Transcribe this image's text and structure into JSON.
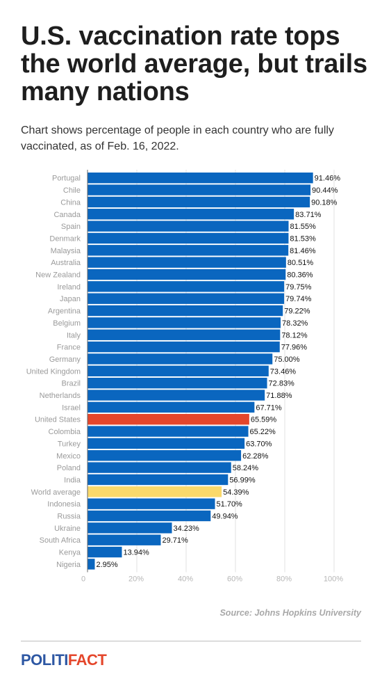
{
  "header": {
    "title": "U.S. vaccination rate tops the world average, but trails many nations",
    "subtitle": "Chart shows percentage of people in each country who are fully vaccinated, as of Feb. 16, 2022."
  },
  "footer": {
    "source": "Source: Johns Hopkins University",
    "logo_part1": "POLITI",
    "logo_part2": "FACT"
  },
  "colors": {
    "bar": "#0a66bf",
    "highlight_us": "#e4462b",
    "highlight_world": "#fad96b",
    "grid": "#e2e2e2",
    "label": "#9a9a9a"
  },
  "chart_data": {
    "type": "bar",
    "orientation": "horizontal",
    "xlim": [
      0,
      100
    ],
    "x_ticks": [
      "0",
      "20%",
      "40%",
      "60%",
      "80%",
      "100%"
    ],
    "x_tick_values": [
      0,
      20,
      40,
      60,
      80,
      100
    ],
    "grid": true,
    "categories": [
      "Portugal",
      "Chile",
      "China",
      "Canada",
      "Spain",
      "Denmark",
      "Malaysia",
      "Australia",
      "New Zealand",
      "Ireland",
      "Japan",
      "Argentina",
      "Belgium",
      "Italy",
      "France",
      "Germany",
      "United Kingdom",
      "Brazil",
      "Netherlands",
      "Israel",
      "United States",
      "Colombia",
      "Turkey",
      "Mexico",
      "Poland",
      "India",
      "World average",
      "Indonesia",
      "Russia",
      "Ukraine",
      "South Africa",
      "Kenya",
      "Nigeria"
    ],
    "values": [
      91.46,
      90.44,
      90.18,
      83.71,
      81.55,
      81.53,
      81.46,
      80.51,
      80.36,
      79.75,
      79.74,
      79.22,
      78.32,
      78.12,
      77.96,
      75.0,
      73.46,
      72.83,
      71.88,
      67.71,
      65.59,
      65.22,
      63.7,
      62.28,
      58.24,
      56.99,
      54.39,
      51.7,
      49.94,
      34.23,
      29.71,
      13.94,
      2.95
    ],
    "value_labels": [
      "91.46%",
      "90.44%",
      "90.18%",
      "83.71%",
      "81.55%",
      "81.53%",
      "81.46%",
      "80.51%",
      "80.36%",
      "79.75%",
      "79.74%",
      "79.22%",
      "78.32%",
      "78.12%",
      "77.96%",
      "75.00%",
      "73.46%",
      "72.83%",
      "71.88%",
      "67.71%",
      "65.59%",
      "65.22%",
      "63.70%",
      "62.28%",
      "58.24%",
      "56.99%",
      "54.39%",
      "51.70%",
      "49.94%",
      "34.23%",
      "29.71%",
      "13.94%",
      "2.95%"
    ],
    "highlights": {
      "United States": "highlight_us",
      "World average": "highlight_world"
    }
  }
}
